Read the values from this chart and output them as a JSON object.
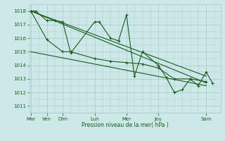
{
  "background_color": "#cde8e8",
  "grid_color": "#aac8c8",
  "line_color": "#1a5c1a",
  "xlabel": "Pression niveau de la mer( hPa )",
  "ylim": [
    1010.5,
    1018.5
  ],
  "yticks": [
    1011,
    1012,
    1013,
    1014,
    1015,
    1016,
    1017,
    1018
  ],
  "day_positions": [
    0,
    1,
    2,
    4,
    6,
    8,
    11
  ],
  "day_labels": [
    "Mar",
    "Ven",
    "Dim",
    "Lun",
    "Mer",
    "Jeu",
    "Sam"
  ],
  "xlim": [
    -0.1,
    11.9
  ],
  "series1_x": [
    0,
    0.3,
    1.0,
    1.5,
    2.0,
    2.5,
    4.0,
    4.3,
    5.0,
    5.5,
    6.0,
    6.5,
    7.0,
    8.0,
    8.5,
    9.0,
    9.5,
    10.0,
    10.5,
    11.0,
    11.4
  ],
  "series1_y": [
    1018.0,
    1018.0,
    1017.3,
    1017.3,
    1017.2,
    1014.9,
    1017.2,
    1017.2,
    1016.0,
    1015.8,
    1017.7,
    1013.2,
    1015.0,
    1014.0,
    1013.1,
    1012.0,
    1012.2,
    1013.0,
    1012.5,
    1013.5,
    1012.7
  ],
  "series2_x": [
    0,
    1.0,
    2.0,
    2.5,
    4.0,
    5.0,
    6.0,
    7.0,
    8.0,
    9.0,
    10.0,
    11.0
  ],
  "series2_y": [
    1018.0,
    1015.9,
    1015.0,
    1015.0,
    1014.5,
    1014.3,
    1014.2,
    1014.1,
    1013.8,
    1013.0,
    1013.0,
    1012.8
  ],
  "trend1_x": [
    0,
    11
  ],
  "trend1_y": [
    1018.0,
    1012.7
  ],
  "trend2_x": [
    0,
    11
  ],
  "trend2_y": [
    1015.0,
    1012.5
  ],
  "trend3_x": [
    0,
    11
  ],
  "trend3_y": [
    1018.0,
    1013.2
  ]
}
